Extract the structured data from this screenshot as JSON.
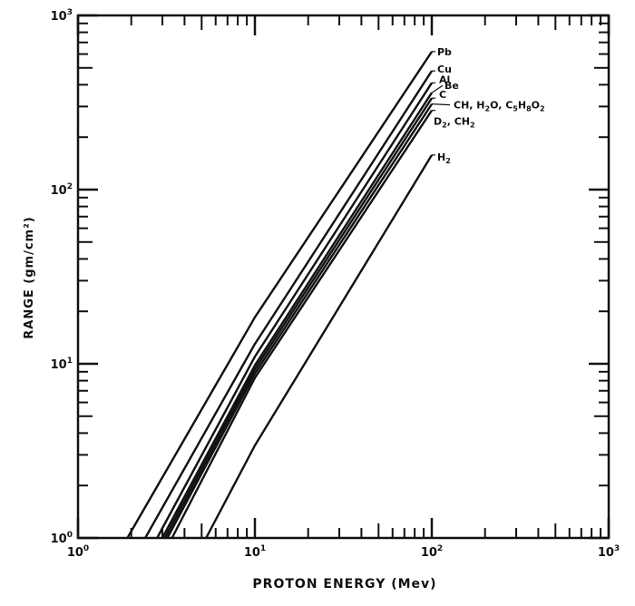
{
  "chart_data": {
    "type": "line",
    "title": "",
    "xlabel": "PROTON ENERGY (Mev)",
    "ylabel": "RANGE (gm/cm²)",
    "x_scale": "log",
    "y_scale": "log",
    "xlim": [
      1,
      1000
    ],
    "ylim": [
      1,
      1000
    ],
    "x_ticks": [
      {
        "value": 1,
        "base": "10",
        "exp": "0"
      },
      {
        "value": 10,
        "base": "10",
        "exp": "1"
      },
      {
        "value": 100,
        "base": "10",
        "exp": "2"
      },
      {
        "value": 1000,
        "base": "10",
        "exp": "3"
      }
    ],
    "y_ticks": [
      {
        "value": 1,
        "base": "10",
        "exp": "0"
      },
      {
        "value": 10,
        "base": "10",
        "exp": "1"
      },
      {
        "value": 100,
        "base": "10",
        "exp": "2"
      },
      {
        "value": 1000,
        "base": "10",
        "exp": "3"
      }
    ],
    "grid": false,
    "line_color": "#111111",
    "series": [
      {
        "name": "Pb",
        "x": [
          1.9,
          10,
          100
        ],
        "y": [
          1.0,
          18.5,
          620
        ]
      },
      {
        "name": "Cu",
        "x": [
          2.4,
          10,
          100
        ],
        "y": [
          1.0,
          13.0,
          480
        ]
      },
      {
        "name": "Al",
        "x": [
          2.8,
          10,
          100
        ],
        "y": [
          1.0,
          11.0,
          410
        ]
      },
      {
        "name": "Be",
        "x": [
          3.0,
          10,
          100
        ],
        "y": [
          1.0,
          9.8,
          360
        ]
      },
      {
        "name": "C",
        "x": [
          3.1,
          10,
          100
        ],
        "y": [
          1.0,
          9.3,
          335
        ]
      },
      {
        "name": "CH, H2O, C5H8O2",
        "x": [
          3.2,
          10,
          100
        ],
        "y": [
          1.0,
          8.8,
          310
        ]
      },
      {
        "name": "D2, CH2",
        "x": [
          3.4,
          10,
          100
        ],
        "y": [
          1.0,
          8.3,
          285
        ]
      },
      {
        "name": "H2",
        "x": [
          5.3,
          10,
          100
        ],
        "y": [
          1.0,
          3.4,
          158
        ]
      }
    ]
  }
}
